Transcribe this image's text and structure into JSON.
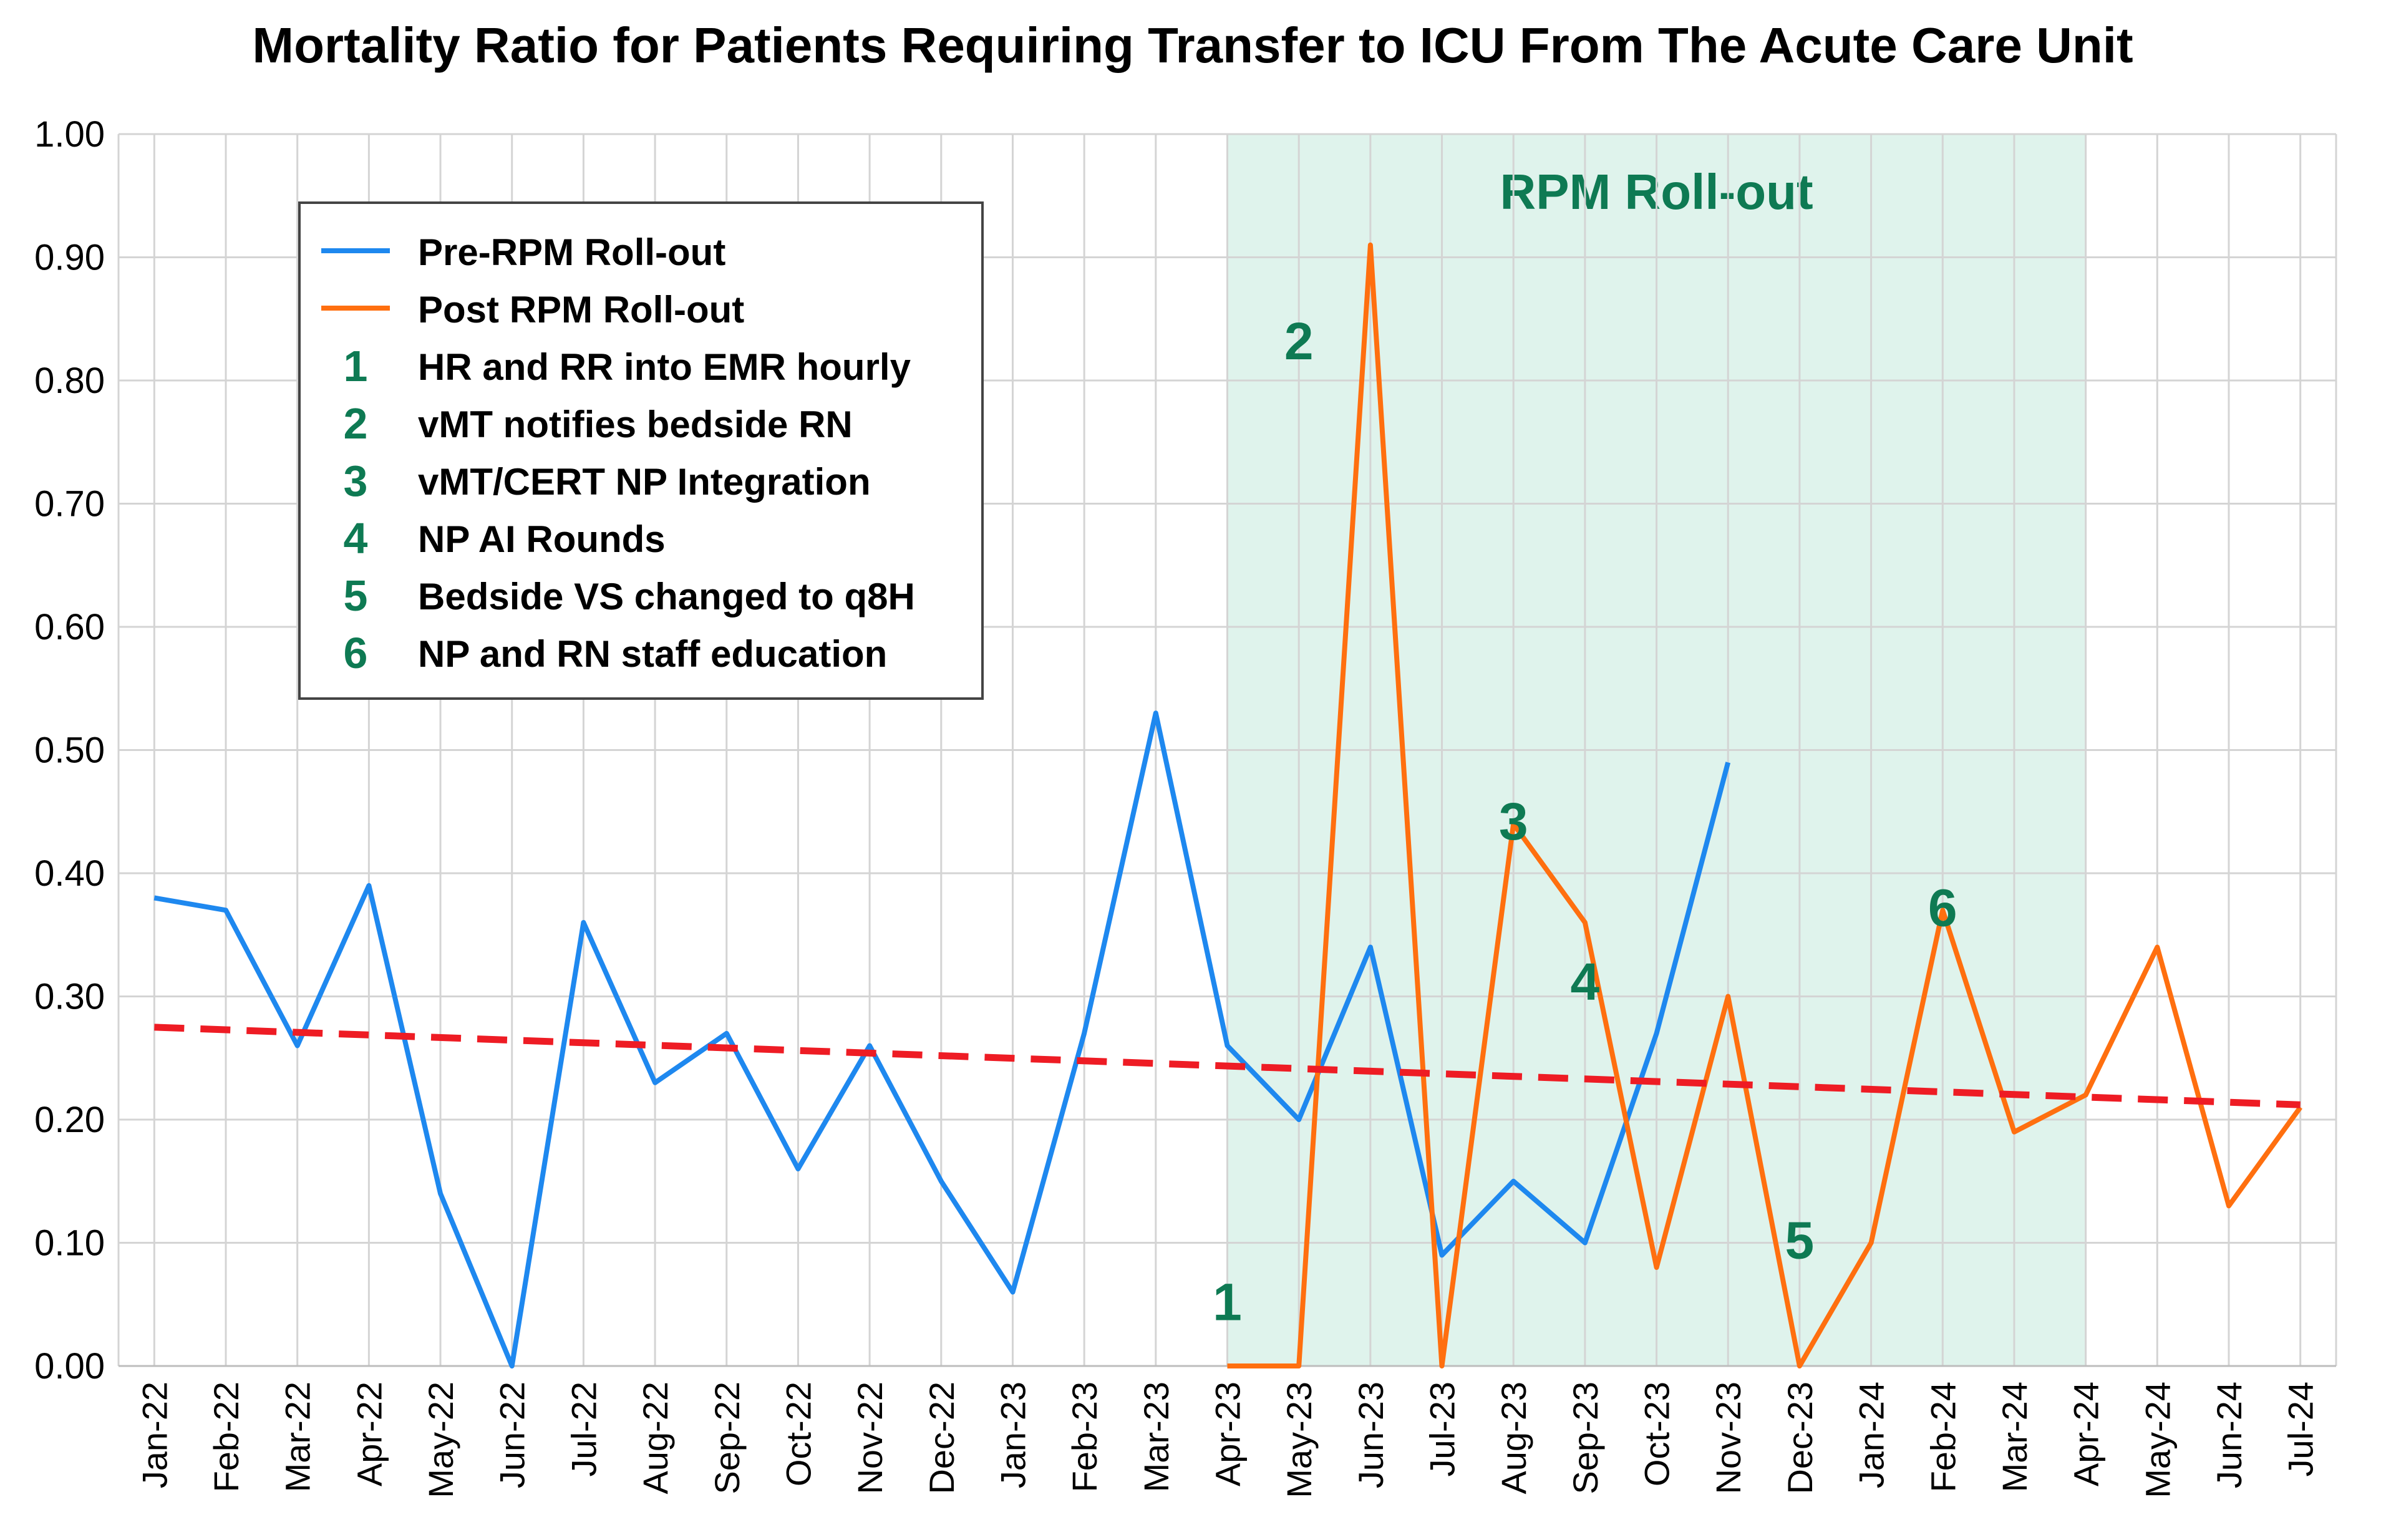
{
  "chart_data": {
    "type": "line",
    "title": "Mortality Ratio for Patients Requiring Transfer to ICU From The Acute Care Unit",
    "xlabel": "",
    "ylabel": "",
    "ylim": [
      0,
      1
    ],
    "y_ticks": [
      "0.00",
      "0.10",
      "0.20",
      "0.30",
      "0.40",
      "0.50",
      "0.60",
      "0.70",
      "0.80",
      "0.90",
      "1.00"
    ],
    "grid": true,
    "categories": [
      "Jan-22",
      "Feb-22",
      "Mar-22",
      "Apr-22",
      "May-22",
      "Jun-22",
      "Jul-22",
      "Aug-22",
      "Sep-22",
      "Oct-22",
      "Nov-22",
      "Dec-22",
      "Jan-23",
      "Feb-23",
      "Mar-23",
      "Apr-23",
      "May-23",
      "Jun-23",
      "Jul-23",
      "Aug-23",
      "Sep-23",
      "Oct-23",
      "Nov-23",
      "Dec-23",
      "Jan-24",
      "Feb-24",
      "Mar-24",
      "Apr-24",
      "May-24",
      "Jun-24",
      "Jul-24"
    ],
    "series": [
      {
        "name": "Pre-RPM Roll-out",
        "color": "#1e88ef",
        "values": [
          0.38,
          0.37,
          0.26,
          0.39,
          0.14,
          0.0,
          0.36,
          0.23,
          0.27,
          0.16,
          0.26,
          0.15,
          0.06,
          0.27,
          0.53,
          0.26,
          0.2,
          0.34,
          0.09,
          0.15,
          0.1,
          0.27,
          0.49,
          null,
          null,
          null,
          null,
          null,
          null,
          null,
          null
        ]
      },
      {
        "name": "Post RPM Roll-out",
        "color": "#ff6f0f",
        "values": [
          null,
          null,
          null,
          null,
          null,
          null,
          null,
          null,
          null,
          null,
          null,
          null,
          null,
          null,
          null,
          0.0,
          0.0,
          0.91,
          0.0,
          0.44,
          0.36,
          0.08,
          0.3,
          0.0,
          0.1,
          0.37,
          0.19,
          0.22,
          0.34,
          0.13,
          0.21
        ]
      }
    ],
    "trendline": {
      "name": "trend",
      "color": "#ee1c24",
      "start": 0.275,
      "end": 0.212
    },
    "shaded_region": {
      "label": "RPM Roll-out",
      "from": "Apr-23",
      "to": "Apr-24",
      "color": "#dff3ec",
      "label_color": "#0e7a53"
    },
    "legend": {
      "placement": "top-left",
      "entries": [
        {
          "type": "line",
          "color": "#1e88ef",
          "label": "Pre-RPM Roll-out"
        },
        {
          "type": "line",
          "color": "#ff6f0f",
          "label": "Post RPM Roll-out"
        },
        {
          "type": "num",
          "num": "1",
          "label": "HR and RR into EMR hourly"
        },
        {
          "type": "num",
          "num": "2",
          "label": "vMT notifies bedside RN"
        },
        {
          "type": "num",
          "num": "3",
          "label": "vMT/CERT NP Integration"
        },
        {
          "type": "num",
          "num": "4",
          "label": "NP AI Rounds"
        },
        {
          "type": "num",
          "num": "5",
          "label": "Bedside VS changed to q8H"
        },
        {
          "type": "num",
          "num": "6",
          "label": "NP and RN staff education"
        }
      ]
    },
    "annotations": [
      {
        "text": "1",
        "x": "Apr-23",
        "y": 0.05
      },
      {
        "text": "2",
        "x": "May-23",
        "y": 0.83
      },
      {
        "text": "3",
        "x": "Aug-23",
        "y": 0.44
      },
      {
        "text": "4",
        "x": "Sep-23",
        "y": 0.31
      },
      {
        "text": "5",
        "x": "Dec-23",
        "y": 0.1
      },
      {
        "text": "6",
        "x": "Feb-24",
        "y": 0.37
      }
    ],
    "annotation_color": "#0e7a53"
  }
}
